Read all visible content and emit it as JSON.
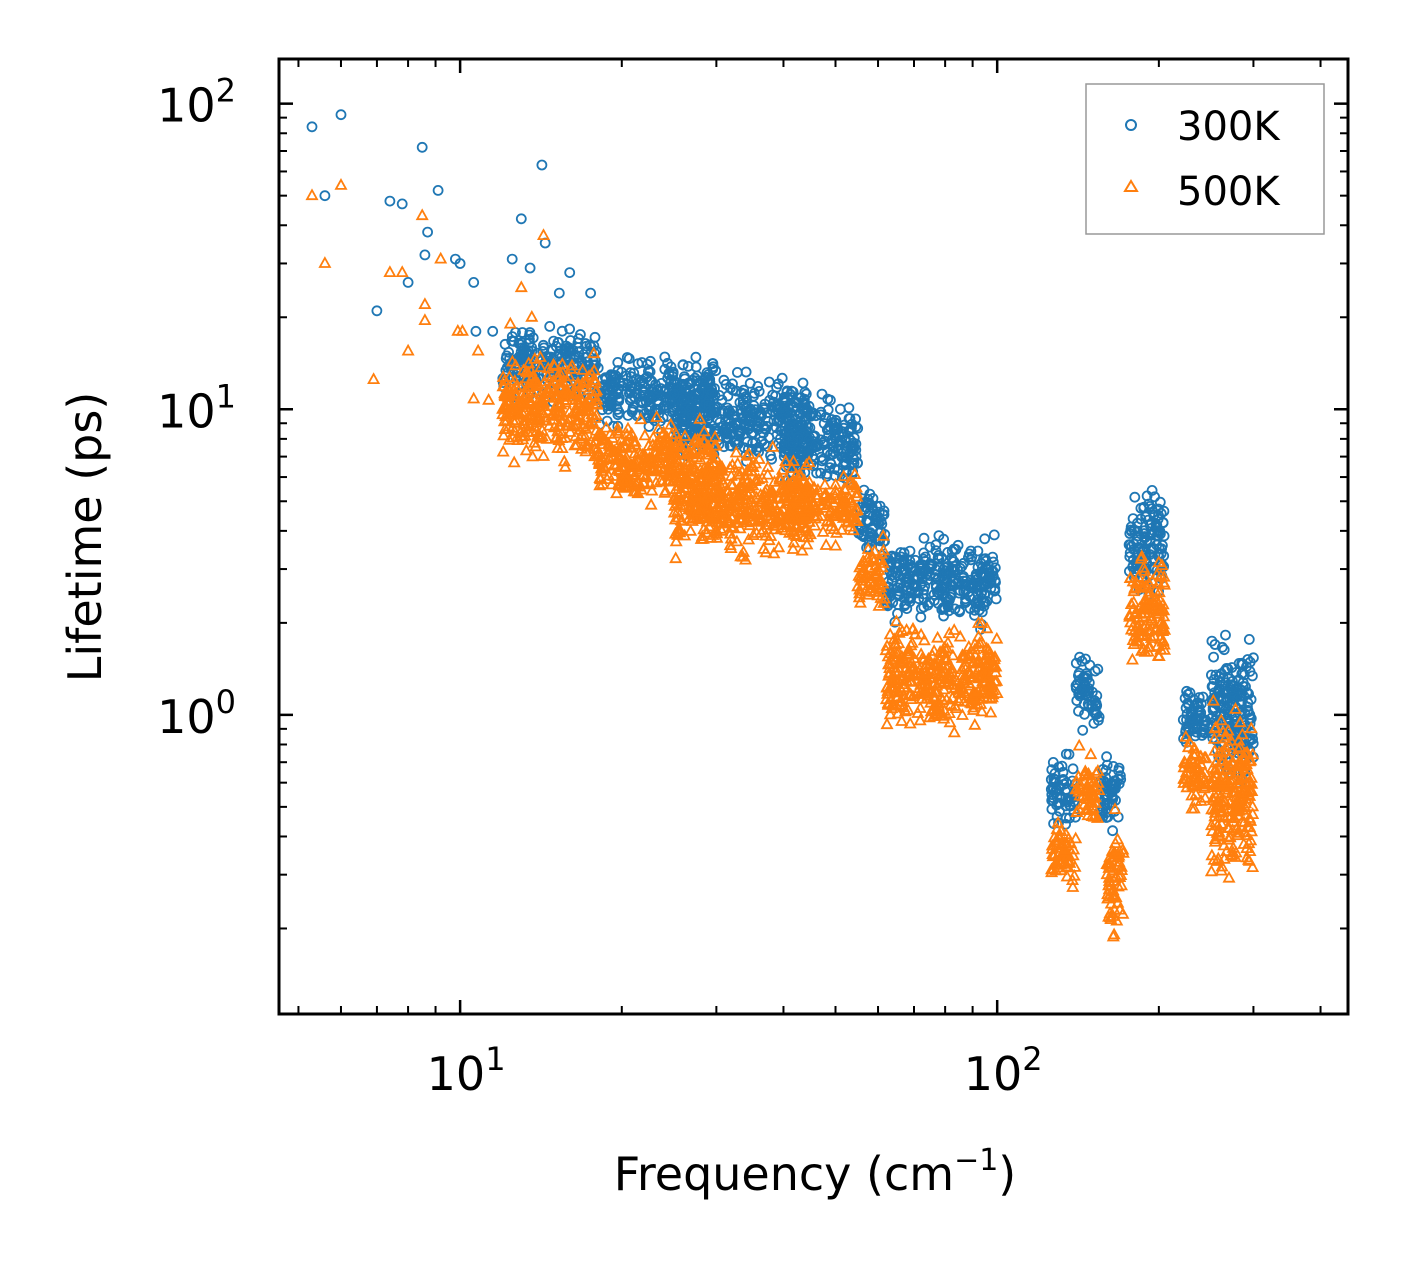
{
  "chart_data": {
    "type": "scatter",
    "title": "",
    "xlabel": "Frequency (cm",
    "xlabel_sup": "−1",
    "xlabel_end": ")",
    "ylabel": "Lifetime (ps)",
    "xscale": "log",
    "yscale": "log",
    "xlim": [
      4.6,
      450
    ],
    "ylim": [
      0.105,
      140
    ],
    "x_major_ticks": [
      {
        "value": 10,
        "base": "10",
        "exp": "1"
      },
      {
        "value": 100,
        "base": "10",
        "exp": "2"
      }
    ],
    "y_major_ticks": [
      {
        "value": 1,
        "base": "10",
        "exp": "0"
      },
      {
        "value": 10,
        "base": "10",
        "exp": "1"
      },
      {
        "value": 100,
        "base": "10",
        "exp": "2"
      }
    ],
    "legend": {
      "position": "top-right"
    },
    "series": [
      {
        "name": "300K",
        "marker": "circle",
        "color": "#1f77b4",
        "sample_points": [
          [
            5.3,
            84
          ],
          [
            5.6,
            50
          ],
          [
            6.0,
            92
          ],
          [
            7.0,
            21
          ],
          [
            7.4,
            48
          ],
          [
            7.8,
            47
          ],
          [
            8.0,
            26
          ],
          [
            8.5,
            72
          ],
          [
            8.6,
            32
          ],
          [
            8.7,
            38
          ],
          [
            9.1,
            52
          ],
          [
            9.8,
            31
          ],
          [
            10.0,
            30
          ],
          [
            10.6,
            26
          ],
          [
            10.7,
            18
          ],
          [
            11.5,
            18
          ],
          [
            12.5,
            31
          ],
          [
            13.0,
            42
          ],
          [
            13.5,
            29
          ],
          [
            14.2,
            63
          ],
          [
            14.4,
            35
          ],
          [
            15.3,
            24
          ],
          [
            16.0,
            28
          ],
          [
            17.5,
            24
          ]
        ],
        "bands": [
          {
            "x_range": [
              12,
              18
            ],
            "y_range": [
              10,
              20
            ]
          },
          {
            "x_range": [
              18,
              30
            ],
            "y_range": [
              8,
              16
            ]
          },
          {
            "x_range": [
              25,
              45
            ],
            "y_range": [
              6,
              14
            ]
          },
          {
            "x_range": [
              40,
              55
            ],
            "y_range": [
              5,
              12
            ]
          },
          {
            "x_range": [
              55,
              62
            ],
            "y_range": [
              3,
              6
            ]
          },
          {
            "x_range": [
              62,
              100
            ],
            "y_range": [
              1.8,
              4.2
            ]
          },
          {
            "x_range": [
              126,
              140
            ],
            "y_range": [
              0.4,
              0.8
            ]
          },
          {
            "x_range": [
              140,
              155
            ],
            "y_range": [
              0.8,
              1.7
            ]
          },
          {
            "x_range": [
              155,
              170
            ],
            "y_range": [
              0.4,
              0.8
            ]
          },
          {
            "x_range": [
              176,
              205
            ],
            "y_range": [
              2.2,
              6.3
            ]
          },
          {
            "x_range": [
              222,
              245
            ],
            "y_range": [
              0.75,
              1.3
            ]
          },
          {
            "x_range": [
              250,
              300
            ],
            "y_range": [
              0.5,
              2.0
            ]
          }
        ]
      },
      {
        "name": "500K",
        "marker": "triangle",
        "color": "#ff7f0e",
        "sample_points": [
          [
            5.3,
            50
          ],
          [
            5.6,
            30
          ],
          [
            6.0,
            54
          ],
          [
            6.9,
            12.5
          ],
          [
            7.4,
            28
          ],
          [
            7.8,
            28
          ],
          [
            8.0,
            15.5
          ],
          [
            8.5,
            43
          ],
          [
            8.6,
            19.5
          ],
          [
            8.6,
            22
          ],
          [
            9.2,
            31
          ],
          [
            9.9,
            18
          ],
          [
            10.1,
            18
          ],
          [
            10.6,
            10.8
          ],
          [
            10.8,
            15.5
          ],
          [
            11.3,
            10.7
          ],
          [
            12.0,
            10
          ],
          [
            12.4,
            19
          ],
          [
            13.0,
            25
          ],
          [
            13.6,
            20
          ],
          [
            14.3,
            37
          ],
          [
            15.5,
            14
          ],
          [
            16.5,
            12
          ]
        ],
        "bands": [
          {
            "x_range": [
              12,
              18
            ],
            "y_range": [
              6,
              17
            ]
          },
          {
            "x_range": [
              18,
              30
            ],
            "y_range": [
              4.5,
              10
            ]
          },
          {
            "x_range": [
              25,
              45
            ],
            "y_range": [
              3,
              8
            ]
          },
          {
            "x_range": [
              40,
              55
            ],
            "y_range": [
              3.5,
              6.5
            ]
          },
          {
            "x_range": [
              55,
              62
            ],
            "y_range": [
              2,
              4
            ]
          },
          {
            "x_range": [
              62,
              100
            ],
            "y_range": [
              0.8,
              2.2
            ]
          },
          {
            "x_range": [
              126,
              140
            ],
            "y_range": [
              0.24,
              0.5
            ]
          },
          {
            "x_range": [
              140,
              155
            ],
            "y_range": [
              0.4,
              0.8
            ]
          },
          {
            "x_range": [
              160,
              172
            ],
            "y_range": [
              0.16,
              0.5
            ]
          },
          {
            "x_range": [
              176,
              205
            ],
            "y_range": [
              1.3,
              3.8
            ]
          },
          {
            "x_range": [
              222,
              245
            ],
            "y_range": [
              0.45,
              0.95
            ]
          },
          {
            "x_range": [
              250,
              300
            ],
            "y_range": [
              0.25,
              1.2
            ]
          }
        ]
      }
    ]
  }
}
